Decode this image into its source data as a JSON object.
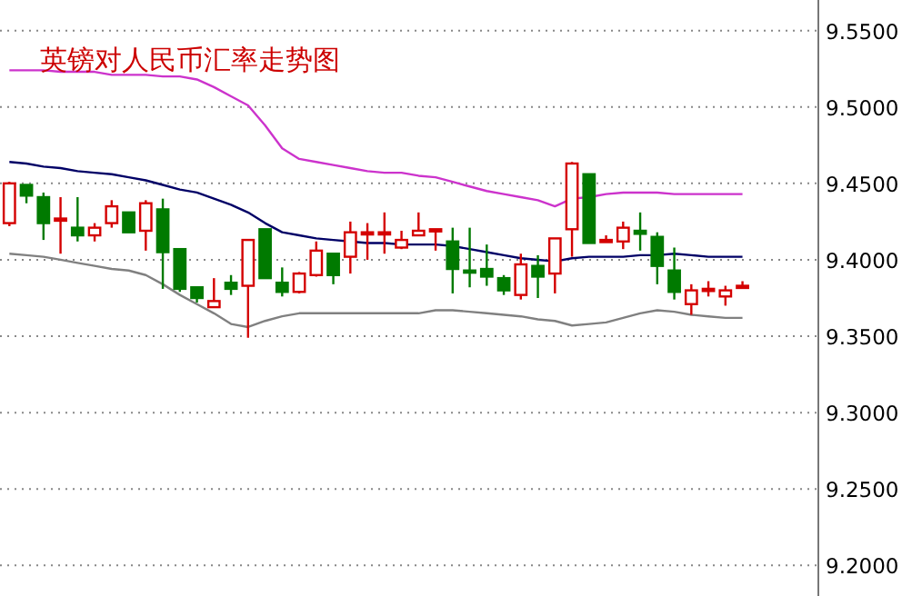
{
  "chart_data": {
    "type": "candlestick",
    "title": "英镑对人民币汇率走势图",
    "categories": [
      null,
      null,
      null,
      null,
      null,
      null,
      null,
      null,
      null,
      null,
      null,
      null,
      null,
      null,
      null,
      null,
      null,
      null,
      null,
      null,
      null,
      null,
      null,
      null,
      null,
      null,
      null,
      null,
      null,
      null,
      null,
      null,
      null,
      null,
      null,
      null,
      null,
      null,
      null,
      null,
      null,
      null,
      null,
      null
    ],
    "ohlc": [
      [
        9.424,
        9.451,
        9.422,
        9.45
      ],
      [
        9.449,
        9.449,
        9.437,
        9.442
      ],
      [
        9.441,
        9.444,
        9.413,
        9.424
      ],
      [
        9.426,
        9.441,
        9.404,
        9.427
      ],
      [
        9.421,
        9.441,
        9.412,
        9.416
      ],
      [
        9.416,
        9.424,
        9.412,
        9.421
      ],
      [
        9.424,
        9.439,
        9.421,
        9.435
      ],
      [
        9.431,
        9.431,
        9.418,
        9.418
      ],
      [
        9.419,
        9.439,
        9.406,
        9.437
      ],
      [
        9.433,
        9.44,
        9.381,
        9.405
      ],
      [
        9.407,
        9.407,
        9.379,
        9.381
      ],
      [
        9.382,
        9.382,
        9.372,
        9.375
      ],
      [
        9.369,
        9.388,
        9.369,
        9.373
      ],
      [
        9.385,
        9.39,
        9.377,
        9.381
      ],
      [
        9.383,
        9.413,
        9.349,
        9.413
      ],
      [
        9.42,
        9.42,
        9.388,
        9.388
      ],
      [
        9.385,
        9.395,
        9.376,
        9.379
      ],
      [
        9.379,
        9.392,
        9.378,
        9.391
      ],
      [
        9.39,
        9.412,
        9.389,
        9.406
      ],
      [
        9.404,
        9.404,
        9.384,
        9.39
      ],
      [
        9.402,
        9.425,
        9.391,
        9.418
      ],
      [
        9.417,
        9.424,
        9.4,
        9.418
      ],
      [
        9.418,
        9.431,
        9.404,
        9.418
      ],
      [
        9.408,
        9.419,
        9.407,
        9.413
      ],
      [
        9.416,
        9.431,
        9.416,
        9.419
      ],
      [
        9.42,
        9.42,
        9.406,
        9.42
      ],
      [
        9.412,
        9.421,
        9.378,
        9.394
      ],
      [
        9.393,
        9.421,
        9.382,
        9.392
      ],
      [
        9.394,
        9.41,
        9.383,
        9.389
      ],
      [
        9.388,
        9.39,
        9.377,
        9.38
      ],
      [
        9.377,
        9.404,
        9.374,
        9.397
      ],
      [
        9.396,
        9.403,
        9.375,
        9.389
      ],
      [
        9.391,
        9.414,
        9.378,
        9.414
      ],
      [
        9.42,
        9.464,
        9.402,
        9.463
      ],
      [
        9.456,
        9.456,
        9.411,
        9.411
      ],
      [
        9.412,
        9.416,
        9.412,
        9.413
      ],
      [
        9.412,
        9.425,
        9.407,
        9.421
      ],
      [
        9.419,
        9.431,
        9.406,
        9.417
      ],
      [
        9.415,
        9.418,
        9.384,
        9.396
      ],
      [
        9.393,
        9.408,
        9.374,
        9.379
      ],
      [
        9.371,
        9.384,
        9.364,
        9.38
      ],
      [
        9.381,
        9.386,
        9.376,
        9.381
      ],
      [
        9.376,
        9.383,
        9.37,
        9.38
      ],
      [
        9.382,
        9.386,
        9.382,
        9.383
      ]
    ],
    "series": [
      {
        "type": "line",
        "color": "#cc33cc",
        "values": [
          9.524,
          9.524,
          9.524,
          9.523,
          9.523,
          9.523,
          9.521,
          9.521,
          9.521,
          9.52,
          9.52,
          9.518,
          9.513,
          9.507,
          9.501,
          9.488,
          9.473,
          9.466,
          9.464,
          9.462,
          9.46,
          9.458,
          9.457,
          9.457,
          9.455,
          9.454,
          9.451,
          9.448,
          9.445,
          9.443,
          9.441,
          9.439,
          9.435,
          9.44,
          9.441,
          9.443,
          9.444,
          9.444,
          9.444,
          9.443,
          9.443,
          9.443,
          9.443,
          9.443
        ]
      },
      {
        "type": "line",
        "color": "#000066",
        "values": [
          9.464,
          9.463,
          9.461,
          9.46,
          9.458,
          9.457,
          9.456,
          9.454,
          9.452,
          9.449,
          9.446,
          9.444,
          9.44,
          9.436,
          9.431,
          9.424,
          9.418,
          9.416,
          9.414,
          9.413,
          9.412,
          9.411,
          9.411,
          9.41,
          9.41,
          9.41,
          9.409,
          9.407,
          9.405,
          9.403,
          9.401,
          9.4,
          9.399,
          9.401,
          9.402,
          9.402,
          9.402,
          9.403,
          9.403,
          9.404,
          9.403,
          9.402,
          9.402,
          9.402
        ]
      },
      {
        "type": "line",
        "color": "#808080",
        "values": [
          9.404,
          9.403,
          9.402,
          9.4,
          9.398,
          9.396,
          9.394,
          9.393,
          9.39,
          9.384,
          9.377,
          9.371,
          9.365,
          9.358,
          9.356,
          9.36,
          9.363,
          9.365,
          9.365,
          9.365,
          9.365,
          9.365,
          9.365,
          9.365,
          9.365,
          9.367,
          9.367,
          9.366,
          9.365,
          9.364,
          9.363,
          9.361,
          9.36,
          9.357,
          9.358,
          9.359,
          9.362,
          9.365,
          9.367,
          9.366,
          9.364,
          9.363,
          9.362,
          9.362
        ]
      }
    ],
    "ylim": [
      9.18,
      9.57
    ],
    "yticks": [
      {
        "value": 9.55,
        "label": "9.5500"
      },
      {
        "value": 9.5,
        "label": "9.5000"
      },
      {
        "value": 9.45,
        "label": "9.4500"
      },
      {
        "value": 9.4,
        "label": "9.4000"
      },
      {
        "value": 9.35,
        "label": "9.3500"
      },
      {
        "value": 9.3,
        "label": "9.3000"
      },
      {
        "value": 9.25,
        "label": "9.2500"
      },
      {
        "value": 9.2,
        "label": "9.2000"
      }
    ],
    "grid": "y",
    "tick_labels": "y"
  }
}
